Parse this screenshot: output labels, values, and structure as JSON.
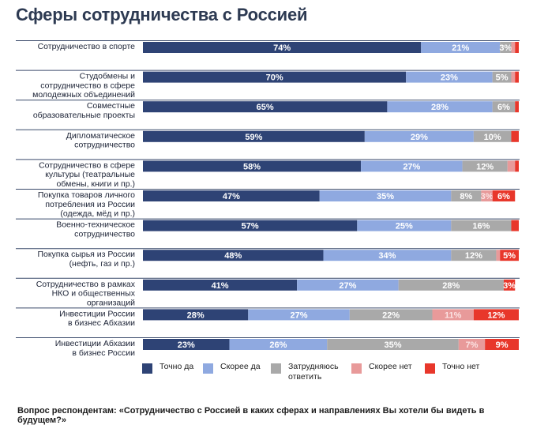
{
  "title": "Сферы сотрудничества с Россией",
  "footer": "Вопрос респондентам: «Сотрудничество с Россией в каких сферах и направлениях Вы хотели бы видеть в будущем?»",
  "colors": {
    "tochno_da": "#2e4375",
    "skoree_da": "#8fa9e0",
    "zatrudnyayus": "#a9a9a9",
    "skoree_net": "#e89a9a",
    "tochno_net": "#e8372b",
    "separator": "#3a4a6b"
  },
  "legend": [
    {
      "label": "Точно да",
      "color": "#2e4375"
    },
    {
      "label": "Скорее да",
      "color": "#8fa9e0"
    },
    {
      "label": "Затрудняюсь ответить",
      "color": "#a9a9a9"
    },
    {
      "label": "Скорее нет",
      "color": "#e89a9a"
    },
    {
      "label": "Точно нет",
      "color": "#e8372b"
    }
  ],
  "chart_data": {
    "type": "bar",
    "orientation": "horizontal",
    "stacked": true,
    "xlim": [
      0,
      100
    ],
    "categories": [
      "Сотрудничество в спорте",
      "Студобмены и сотрудничество в сфере молодежных объединений",
      "Совместные образовательные проекты",
      "Дипломатическое сотрудничество",
      "Сотрудничество в сфере культуры (театральные обмены, книги и пр.)",
      "Покупка товаров личного потребления из России (одежда, мёд и пр.)",
      "Военно-техническое сотрудничество",
      "Покупка сырья из России (нефть, газ и пр.)",
      "Сотрудничество в рамках НКО и общественных организаций",
      "Инвестиции России в бизнес Абхазии",
      "Инвестиции Абхазии в бизнес России"
    ],
    "category_lines": [
      [
        "Сотрудничество в спорте"
      ],
      [
        "Студобмены и",
        "сотрудничество в сфере",
        "молодежных объединений"
      ],
      [
        "Совместные",
        "образовательные проекты"
      ],
      [
        "Дипломатическое",
        "сотрудничество"
      ],
      [
        "Сотрудничество в сфере",
        "культуры (театральные",
        "обмены, книги и пр.)"
      ],
      [
        "Покупка товаров личного",
        "потребления из России",
        "(одежда, мёд и пр.)"
      ],
      [
        "Военно-техническое",
        "сотрудничество"
      ],
      [
        "Покупка сырья из России",
        "(нефть, газ и пр.)"
      ],
      [
        "Сотрудничество в рамках",
        "НКО и общественных",
        "организаций"
      ],
      [
        "Инвестиции России",
        "в бизнес Абхазии"
      ],
      [
        "Инвестиции Абхазии",
        "в бизнес России"
      ]
    ],
    "series": [
      {
        "name": "Точно да",
        "color": "#2e4375",
        "values": [
          74,
          70,
          65,
          59,
          58,
          47,
          57,
          48,
          41,
          28,
          23
        ]
      },
      {
        "name": "Скорее да",
        "color": "#8fa9e0",
        "values": [
          21,
          23,
          28,
          29,
          27,
          35,
          25,
          34,
          27,
          27,
          26
        ]
      },
      {
        "name": "Затрудняюсь ответить",
        "color": "#a9a9a9",
        "values": [
          3,
          5,
          6,
          10,
          12,
          8,
          16,
          12,
          28,
          22,
          35
        ]
      },
      {
        "name": "Скорее нет",
        "color": "#e89a9a",
        "values": [
          1,
          1,
          0,
          0,
          2,
          3,
          0,
          1,
          0,
          11,
          7
        ]
      },
      {
        "name": "Точно нет",
        "color": "#e8372b",
        "values": [
          1,
          1,
          1,
          2,
          1,
          6,
          2,
          5,
          3,
          12,
          9
        ]
      }
    ],
    "data_labels": [
      [
        "74%",
        "21%",
        "3%",
        "",
        ""
      ],
      [
        "70%",
        "23%",
        "5%",
        "",
        ""
      ],
      [
        "65%",
        "28%",
        "6%",
        "",
        ""
      ],
      [
        "59%",
        "29%",
        "10%",
        "",
        ""
      ],
      [
        "58%",
        "27%",
        "12%",
        "",
        ""
      ],
      [
        "47%",
        "35%",
        "8%",
        "3%",
        "6%"
      ],
      [
        "57%",
        "25%",
        "16%",
        "",
        ""
      ],
      [
        "48%",
        "34%",
        "12%",
        "",
        "5%"
      ],
      [
        "41%",
        "27%",
        "28%",
        "",
        "3%"
      ],
      [
        "28%",
        "27%",
        "22%",
        "11%",
        "12%"
      ],
      [
        "23%",
        "26%",
        "35%",
        "7%",
        "9%"
      ]
    ],
    "legend_position": "bottom",
    "grid": false
  }
}
